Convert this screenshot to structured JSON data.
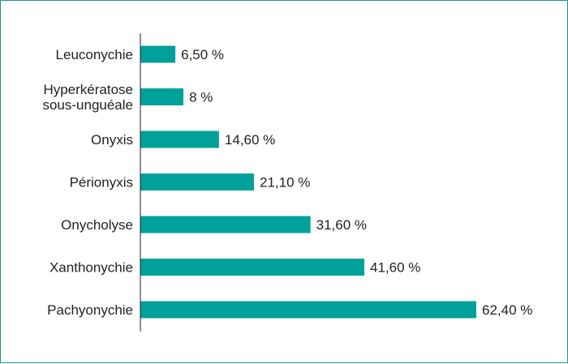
{
  "chart_data": {
    "type": "bar",
    "orientation": "horizontal",
    "title": "",
    "xlabel": "",
    "ylabel": "",
    "bar_color": "#00a19a",
    "xlim": [
      0,
      62.4
    ],
    "grid": false,
    "categories": [
      [
        "Leuconychie"
      ],
      [
        "Hyperkératose",
        "sous-unguéale"
      ],
      [
        "Onyxis"
      ],
      [
        "Périonyxis"
      ],
      [
        "Onycholyse"
      ],
      [
        "Xanthonychie"
      ],
      [
        "Pachyonychie"
      ]
    ],
    "values": [
      6.5,
      8,
      14.6,
      21.1,
      31.6,
      41.6,
      62.4
    ],
    "value_labels": [
      "6,50 %",
      "8 %",
      "14,60 %",
      "21,10 %",
      "31,60 %",
      "41,60 %",
      "62,40 %"
    ]
  }
}
